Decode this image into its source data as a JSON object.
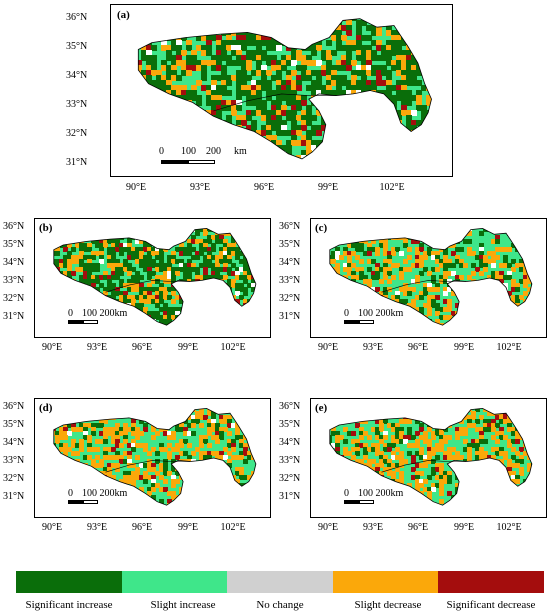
{
  "panels": [
    {
      "id": "a",
      "label": "(a)"
    },
    {
      "id": "b",
      "label": "(b)"
    },
    {
      "id": "c",
      "label": "(c)"
    },
    {
      "id": "d",
      "label": "(d)"
    },
    {
      "id": "e",
      "label": "(e)"
    }
  ],
  "lat_ticks": [
    "36°N",
    "35°N",
    "34°N",
    "33°N",
    "32°N",
    "31°N"
  ],
  "lon_ticks": [
    "90°E",
    "93°E",
    "96°E",
    "99°E",
    "102°E"
  ],
  "scalebar_large": {
    "v0": "0",
    "v1": "100",
    "v2": "200",
    "unit": "km"
  },
  "scalebar_small": {
    "text0": "0",
    "text1": "100 200km"
  },
  "legend": [
    {
      "label": "Significant increase",
      "color": "#0a6e0a"
    },
    {
      "label": "Slight increase",
      "color": "#3fe68a"
    },
    {
      "label": "No change",
      "color": "#d0d0d0"
    },
    {
      "label": "Slight decrease",
      "color": "#fba80a"
    },
    {
      "label": "Significant decrease",
      "color": "#a40d0d"
    }
  ]
}
